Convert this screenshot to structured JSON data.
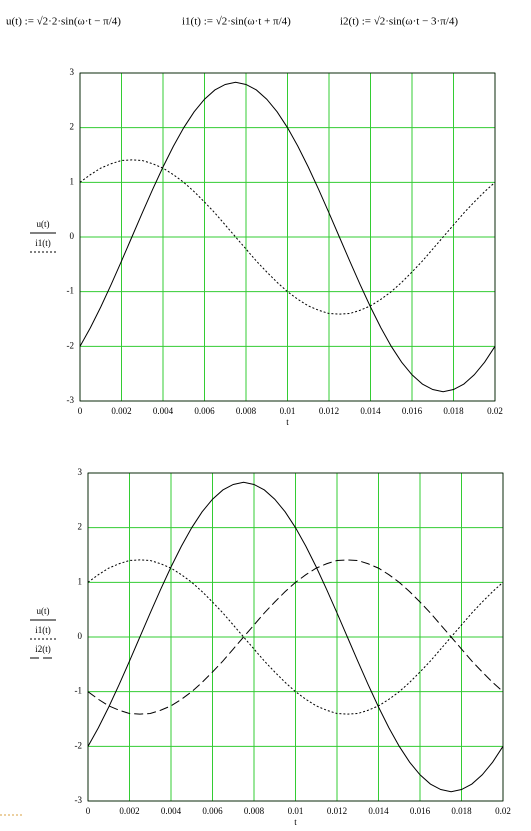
{
  "formulas": [
    "u(t) := √2·2·sin(ω·t − π/4)",
    "i1(t) := √2·sin(ω·t + π/4)",
    "i2(t) := √2·sin(ω·t − 3·π/4)"
  ],
  "chart_data": [
    {
      "type": "line",
      "xlabel": "t",
      "x": [
        0,
        0.0005,
        0.001,
        0.0015,
        0.002,
        0.0025,
        0.003,
        0.0035,
        0.004,
        0.0045,
        0.005,
        0.0055,
        0.006,
        0.0065,
        0.007,
        0.0075,
        0.008,
        0.0085,
        0.009,
        0.0095,
        0.01,
        0.0105,
        0.011,
        0.0115,
        0.012,
        0.0125,
        0.013,
        0.0135,
        0.014,
        0.0145,
        0.015,
        0.0155,
        0.016,
        0.0165,
        0.017,
        0.0175,
        0.018,
        0.0185,
        0.019,
        0.0195,
        0.02
      ],
      "series": [
        {
          "name": "u(t)",
          "color": "#000000",
          "dash": "solid",
          "values": [
            -2.0,
            -1.66,
            -1.28,
            -0.87,
            -0.44,
            0,
            0.44,
            0.87,
            1.28,
            1.66,
            2.0,
            2.29,
            2.52,
            2.69,
            2.79,
            2.83,
            2.79,
            2.69,
            2.52,
            2.29,
            2.0,
            1.66,
            1.28,
            0.87,
            0.44,
            0,
            -0.44,
            -0.87,
            -1.28,
            -1.66,
            -2.0,
            -2.29,
            -2.52,
            -2.69,
            -2.79,
            -2.83,
            -2.79,
            -2.69,
            -2.52,
            -2.29,
            -2.0
          ]
        },
        {
          "name": "i1(t)",
          "color": "#000000",
          "dash": "dotted",
          "values": [
            1.0,
            1.14,
            1.26,
            1.34,
            1.4,
            1.41,
            1.4,
            1.34,
            1.26,
            1.14,
            1.0,
            0.83,
            0.64,
            0.44,
            0.22,
            0,
            -0.22,
            -0.44,
            -0.64,
            -0.83,
            -1.0,
            -1.14,
            -1.26,
            -1.34,
            -1.4,
            -1.41,
            -1.4,
            -1.34,
            -1.26,
            -1.14,
            -1.0,
            -0.83,
            -0.64,
            -0.44,
            -0.22,
            0,
            0.22,
            0.44,
            0.64,
            0.83,
            1.0
          ]
        }
      ],
      "xlim": [
        0,
        0.02
      ],
      "xticks": [
        0,
        0.002,
        0.004,
        0.006,
        0.008,
        0.01,
        0.012,
        0.014,
        0.016,
        0.018,
        0.02
      ],
      "ylim": [
        -3,
        3
      ],
      "yticks": [
        -3,
        -2,
        -1,
        0,
        1,
        2,
        3
      ],
      "grid": true,
      "grid_color": "#33cc33"
    },
    {
      "type": "line",
      "xlabel": "t",
      "x": [
        0,
        0.0005,
        0.001,
        0.0015,
        0.002,
        0.0025,
        0.003,
        0.0035,
        0.004,
        0.0045,
        0.005,
        0.0055,
        0.006,
        0.0065,
        0.007,
        0.0075,
        0.008,
        0.0085,
        0.009,
        0.0095,
        0.01,
        0.0105,
        0.011,
        0.0115,
        0.012,
        0.0125,
        0.013,
        0.0135,
        0.014,
        0.0145,
        0.015,
        0.0155,
        0.016,
        0.0165,
        0.017,
        0.0175,
        0.018,
        0.0185,
        0.019,
        0.0195,
        0.02
      ],
      "series": [
        {
          "name": "u(t)",
          "color": "#000000",
          "dash": "solid",
          "values": [
            -2.0,
            -1.66,
            -1.28,
            -0.87,
            -0.44,
            0,
            0.44,
            0.87,
            1.28,
            1.66,
            2.0,
            2.29,
            2.52,
            2.69,
            2.79,
            2.83,
            2.79,
            2.69,
            2.52,
            2.29,
            2.0,
            1.66,
            1.28,
            0.87,
            0.44,
            0,
            -0.44,
            -0.87,
            -1.28,
            -1.66,
            -2.0,
            -2.29,
            -2.52,
            -2.69,
            -2.79,
            -2.83,
            -2.79,
            -2.69,
            -2.52,
            -2.29,
            -2.0
          ]
        },
        {
          "name": "i1(t)",
          "color": "#000000",
          "dash": "dotted",
          "values": [
            1.0,
            1.14,
            1.26,
            1.34,
            1.4,
            1.41,
            1.4,
            1.34,
            1.26,
            1.14,
            1.0,
            0.83,
            0.64,
            0.44,
            0.22,
            0,
            -0.22,
            -0.44,
            -0.64,
            -0.83,
            -1.0,
            -1.14,
            -1.26,
            -1.34,
            -1.4,
            -1.41,
            -1.4,
            -1.34,
            -1.26,
            -1.14,
            -1.0,
            -0.83,
            -0.64,
            -0.44,
            -0.22,
            0,
            0.22,
            0.44,
            0.64,
            0.83,
            1.0
          ]
        },
        {
          "name": "i2(t)",
          "color": "#000000",
          "dash": "dashed",
          "values": [
            -1.0,
            -1.14,
            -1.26,
            -1.34,
            -1.4,
            -1.41,
            -1.4,
            -1.34,
            -1.26,
            -1.14,
            -1.0,
            -0.83,
            -0.64,
            -0.44,
            -0.22,
            0,
            0.22,
            0.44,
            0.64,
            0.83,
            1.0,
            1.14,
            1.26,
            1.34,
            1.4,
            1.41,
            1.4,
            1.34,
            1.26,
            1.14,
            1.0,
            0.83,
            0.64,
            0.44,
            0.22,
            0,
            -0.22,
            -0.44,
            -0.64,
            -0.83,
            -1.0
          ]
        }
      ],
      "xlim": [
        0,
        0.02
      ],
      "xticks": [
        0,
        0.002,
        0.004,
        0.006,
        0.008,
        0.01,
        0.012,
        0.014,
        0.016,
        0.018,
        0.02
      ],
      "ylim": [
        -3,
        3
      ],
      "yticks": [
        -3,
        -2,
        -1,
        0,
        1,
        2,
        3
      ],
      "grid": true,
      "grid_color": "#33cc33"
    }
  ]
}
